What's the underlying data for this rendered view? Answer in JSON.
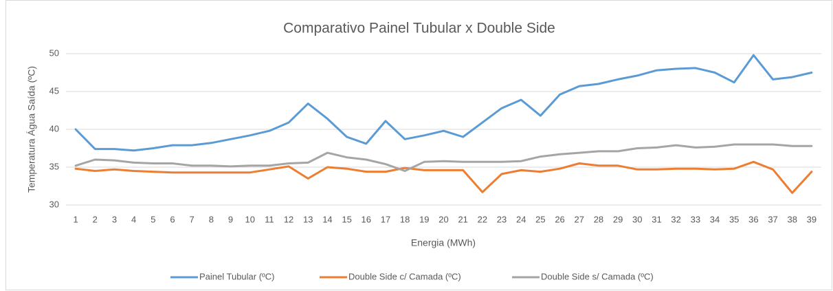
{
  "chart_data": {
    "type": "line",
    "title": "Comparativo Painel Tubular x Double Side",
    "x_label": "Energia (MWh)",
    "y_label": "Temperatura Água Saída (ºC)",
    "categories": [
      "1",
      "2",
      "3",
      "4",
      "5",
      "6",
      "7",
      "8",
      "9",
      "10",
      "11",
      "12",
      "13",
      "14",
      "15",
      "16",
      "17",
      "18",
      "19",
      "20",
      "21",
      "22",
      "23",
      "24",
      "25",
      "26",
      "27",
      "28",
      "29",
      "30",
      "31",
      "32",
      "33",
      "34",
      "35",
      "36",
      "37",
      "38",
      "39"
    ],
    "series": [
      {
        "name": "Painel Tubular (ºC)",
        "color": "#5b9bd5",
        "values": [
          40.0,
          37.4,
          37.4,
          37.2,
          37.5,
          37.9,
          37.9,
          38.2,
          38.7,
          39.2,
          39.8,
          40.9,
          43.4,
          41.4,
          39.0,
          38.1,
          41.1,
          38.7,
          39.2,
          39.8,
          39.0,
          40.9,
          42.8,
          43.9,
          41.8,
          44.6,
          45.7,
          46.0,
          46.6,
          47.1,
          47.8,
          48.0,
          48.1,
          47.5,
          46.2,
          49.8,
          46.6,
          46.9,
          47.5
        ]
      },
      {
        "name": "Double Side c/ Camada (ºC)",
        "color": "#ed7d31",
        "values": [
          34.8,
          34.5,
          34.7,
          34.5,
          34.4,
          34.3,
          34.3,
          34.3,
          34.3,
          34.3,
          34.7,
          35.1,
          33.5,
          35.0,
          34.8,
          34.4,
          34.4,
          34.9,
          34.6,
          34.6,
          34.6,
          31.7,
          34.1,
          34.6,
          34.4,
          34.8,
          35.5,
          35.2,
          35.2,
          34.7,
          34.7,
          34.8,
          34.8,
          34.7,
          34.8,
          35.7,
          34.7,
          31.6,
          34.4
        ]
      },
      {
        "name": "Double Side s/ Camada (ºC)",
        "color": "#a5a5a5",
        "values": [
          35.2,
          36.0,
          35.9,
          35.6,
          35.5,
          35.5,
          35.2,
          35.2,
          35.1,
          35.2,
          35.2,
          35.5,
          35.6,
          36.9,
          36.3,
          36.0,
          35.4,
          34.5,
          35.7,
          35.8,
          35.7,
          35.7,
          35.7,
          35.8,
          36.4,
          36.7,
          36.9,
          37.1,
          37.1,
          37.5,
          37.6,
          37.9,
          37.6,
          37.7,
          38.0,
          38.0,
          38.0,
          37.8,
          37.8
        ]
      }
    ],
    "ylim": [
      30,
      50
    ],
    "yticks": [
      30,
      35,
      40,
      45,
      50
    ],
    "grid": true,
    "legend": "bottom"
  }
}
